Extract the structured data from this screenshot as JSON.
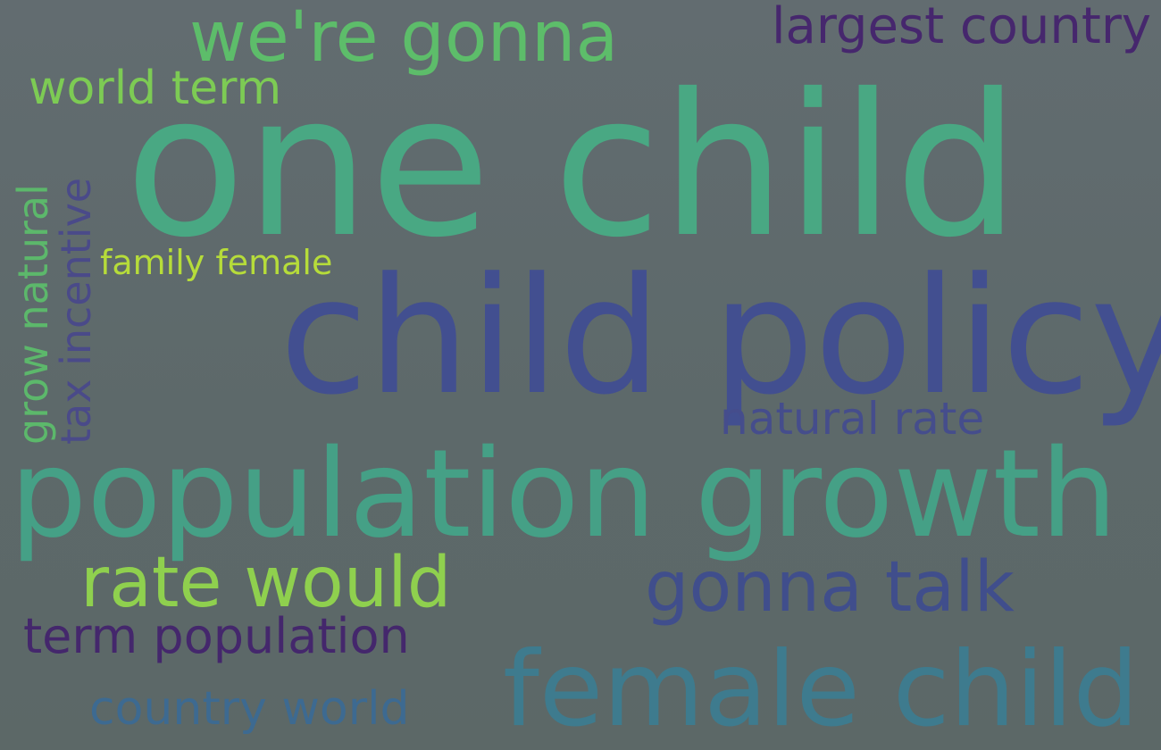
{
  "word_cloud": {
    "words": [
      {
        "text": "one child",
        "color": "#49a883"
      },
      {
        "text": "child policy",
        "color": "#424f90"
      },
      {
        "text": "population growth",
        "color": "#45a086"
      },
      {
        "text": "female child",
        "color": "#3e7b8e"
      },
      {
        "text": "we're gonna",
        "color": "#5dbd6a"
      },
      {
        "text": "gonna talk",
        "color": "#404e8c"
      },
      {
        "text": "rate would",
        "color": "#8fd04e"
      },
      {
        "text": "largest country",
        "color": "#46276d"
      },
      {
        "text": "term population",
        "color": "#44276c"
      },
      {
        "text": "world term",
        "color": "#7dcb54"
      },
      {
        "text": "natural rate",
        "color": "#454d8c"
      },
      {
        "text": "family female",
        "color": "#b6dc3a"
      },
      {
        "text": "country world",
        "color": "#3d6a91"
      },
      {
        "text": "grow natural",
        "color": "#5cb86b"
      },
      {
        "text": "tax incentive",
        "color": "#4a4a89"
      }
    ]
  }
}
